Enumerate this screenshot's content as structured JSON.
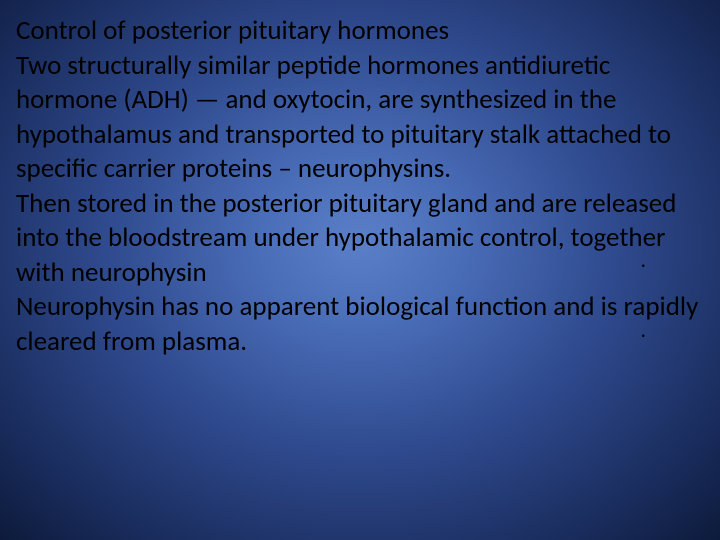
{
  "slide": {
    "background": {
      "type": "radial-gradient",
      "center_color": "#5b7fc7",
      "mid_color": "#2f4a8e",
      "outer_color": "#0d1a3a"
    },
    "text_color": "#000000",
    "font_family": "Calibri",
    "title_fontsize": 27,
    "body_fontsize": 27,
    "line_height": 1.28,
    "title": " Control of posterior pituitary hormones",
    "paragraphs": [
      "Two structurally similar peptide hormones antidiuretic hormone (ADH) — and oxytocin, are  synthesized in the hypothalamus and transported to  pituitary stalk attached to specific carrier proteins –  neurophysins.",
      "  Then stored in the posterior pituitary gland and are released into the bloodstream under hypothalamic control, together with neurophysin",
      "Neurophysin has no apparent biological function and is rapidly cleared from plasma."
    ],
    "decoration": {
      "dot_glyph": "."
    }
  }
}
